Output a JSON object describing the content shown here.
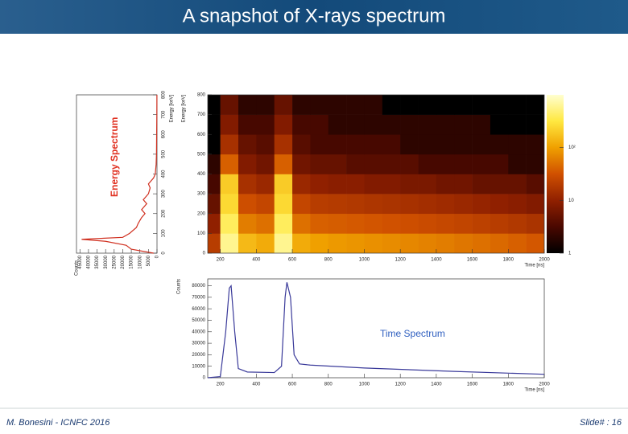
{
  "slide": {
    "title": "A snapshot of X-rays spectrum",
    "footer_left": "M. Bonesini - ICNFC 2016",
    "footer_right": "Slide# : 16"
  },
  "chart_data": [
    {
      "type": "line",
      "orientation": "vertical",
      "title": "Energy Spectrum",
      "title_color": "#e03020",
      "color": "#d03020",
      "x_label": "Energy [keV]",
      "y_label": "Counts",
      "x": [
        0,
        20,
        40,
        60,
        70,
        80,
        100,
        130,
        150,
        180,
        200,
        220,
        250,
        270,
        300,
        330,
        350,
        380,
        400,
        450,
        500,
        600,
        700,
        800
      ],
      "values": [
        2000,
        15000,
        18000,
        30000,
        44000,
        20000,
        16000,
        12000,
        11000,
        9000,
        7000,
        9000,
        6000,
        8000,
        5000,
        4000,
        5000,
        2000,
        1000,
        500,
        300,
        200,
        100,
        50
      ],
      "xlim": [
        0,
        800
      ],
      "xticks": [
        0,
        100,
        200,
        300,
        400,
        500,
        600,
        700,
        800
      ],
      "ylim": [
        0,
        47000
      ],
      "yticks": [
        0,
        5000,
        10000,
        15000,
        20000,
        25000,
        30000,
        35000,
        40000,
        45000
      ]
    },
    {
      "type": "heatmap",
      "x_label": "Time [ns]",
      "y_label": "Energy [keV]",
      "log_color": true,
      "colormap": [
        "#000000",
        "#4a0800",
        "#902000",
        "#d05000",
        "#f0a000",
        "#ffe840",
        "#ffffd0"
      ],
      "xbins": [
        100,
        200,
        300,
        400,
        500,
        600,
        700,
        800,
        900,
        1000,
        1100,
        1200,
        1300,
        1400,
        1500,
        1600,
        1700,
        1800,
        1900,
        2000
      ],
      "ybins": [
        0,
        100,
        200,
        300,
        400,
        500,
        600,
        700,
        800
      ],
      "z": [
        [
          20,
          600,
          150,
          120,
          600,
          120,
          100,
          90,
          85,
          80,
          75,
          70,
          65,
          60,
          55,
          50,
          45,
          40,
          35
        ],
        [
          10,
          400,
          60,
          50,
          400,
          50,
          40,
          38,
          36,
          34,
          32,
          30,
          28,
          26,
          24,
          22,
          20,
          18,
          16
        ],
        [
          5,
          250,
          30,
          25,
          250,
          25,
          20,
          19,
          18,
          17,
          16,
          15,
          14,
          13,
          12,
          11,
          10,
          9,
          8
        ],
        [
          3,
          200,
          15,
          12,
          200,
          12,
          10,
          9,
          9,
          8,
          8,
          7,
          7,
          6,
          6,
          5,
          5,
          5,
          4
        ],
        [
          2,
          40,
          8,
          6,
          40,
          6,
          5,
          5,
          4,
          4,
          4,
          4,
          3,
          3,
          3,
          3,
          3,
          2,
          2
        ],
        [
          1,
          15,
          5,
          4,
          15,
          4,
          3,
          3,
          3,
          3,
          3,
          2,
          2,
          2,
          2,
          2,
          2,
          2,
          2
        ],
        [
          1,
          8,
          3,
          3,
          8,
          3,
          3,
          2,
          2,
          2,
          2,
          2,
          2,
          2,
          2,
          2,
          1,
          1,
          1
        ],
        [
          1,
          5,
          2,
          2,
          5,
          2,
          2,
          2,
          2,
          2,
          1,
          1,
          1,
          1,
          1,
          1,
          1,
          1,
          1
        ]
      ],
      "xlim": [
        130,
        2000
      ],
      "xticks": [
        200,
        400,
        600,
        800,
        1000,
        1200,
        1400,
        1600,
        1800,
        2000
      ],
      "ylim": [
        0,
        800
      ],
      "yticks": [
        0,
        100,
        200,
        300,
        400,
        500,
        600,
        700,
        800
      ],
      "zlim": [
        1,
        1000
      ],
      "zticks": [
        1,
        10,
        {
          "value": 100,
          "label": "10²"
        }
      ]
    },
    {
      "type": "line",
      "title": "Time Spectrum",
      "title_color": "#3060c0",
      "color": "#3a3a9a",
      "x_label": "Time [ns]",
      "y_label": "Counts",
      "x": [
        130,
        200,
        230,
        250,
        260,
        280,
        300,
        350,
        500,
        540,
        560,
        570,
        590,
        610,
        640,
        700,
        1000,
        1500,
        2000
      ],
      "values": [
        0,
        1000,
        40000,
        78000,
        80000,
        40000,
        8000,
        5000,
        4500,
        10000,
        70000,
        83000,
        70000,
        20000,
        12000,
        11000,
        8500,
        5500,
        3000
      ],
      "xlim": [
        130,
        2000
      ],
      "xticks": [
        200,
        400,
        600,
        800,
        1000,
        1200,
        1400,
        1600,
        1800,
        2000
      ],
      "ylim": [
        0,
        86000
      ],
      "yticks": [
        0,
        10000,
        20000,
        30000,
        40000,
        50000,
        60000,
        70000,
        80000
      ]
    }
  ]
}
